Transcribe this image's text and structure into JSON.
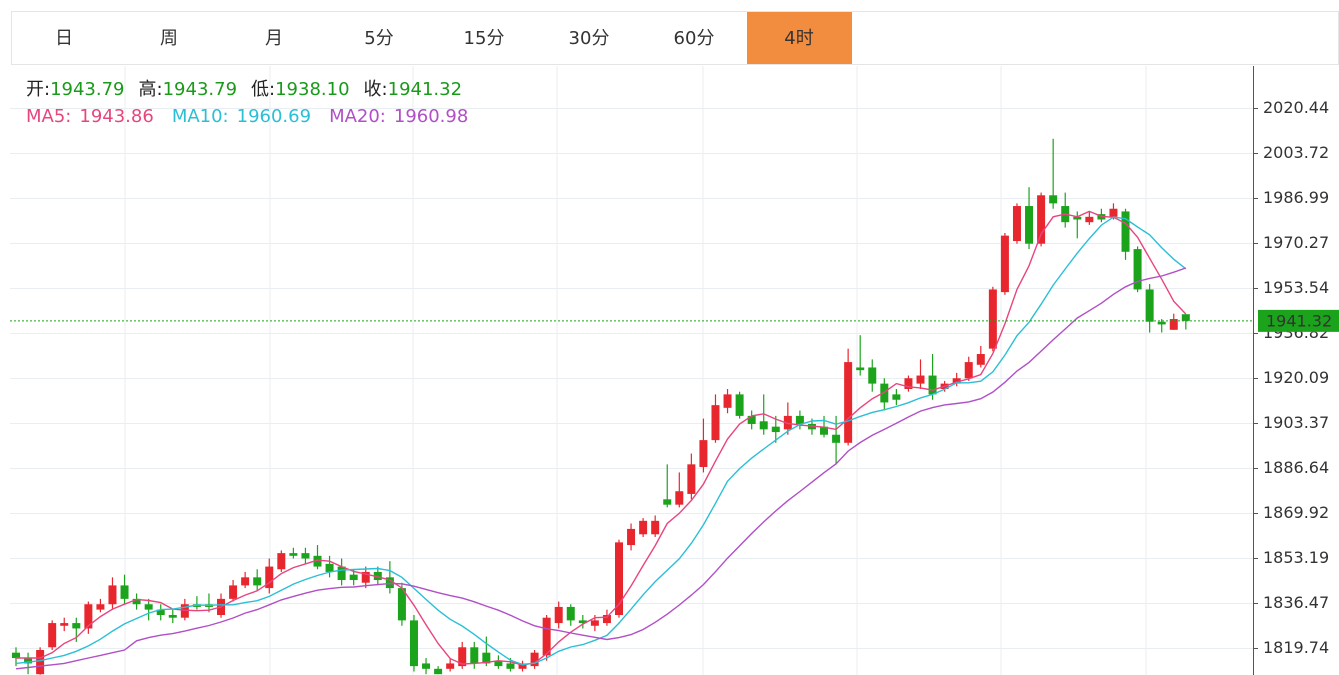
{
  "chart_data": {
    "type": "candlestick",
    "tabs": [
      "日",
      "周",
      "月",
      "5分",
      "15分",
      "30分",
      "60分",
      "4时"
    ],
    "active_tab": 7,
    "info": [
      {
        "label": "开:",
        "value": "1943.79"
      },
      {
        "label": "高:",
        "value": "1943.79"
      },
      {
        "label": "低:",
        "value": "1938.10"
      },
      {
        "label": "收:",
        "value": "1941.32"
      }
    ],
    "up_color": "#e8262e",
    "down_color": "#1ca31c",
    "ylim": [
      1809.7,
      2036.05
    ],
    "yticks": [
      1819.74,
      1836.47,
      1853.19,
      1869.92,
      1886.64,
      1903.37,
      1920.09,
      1936.82,
      1953.54,
      1970.27,
      1986.99,
      2003.72,
      2020.44
    ],
    "grid": true,
    "last_price": 1941.32,
    "open": [
      1818,
      1816,
      1810,
      1820,
      1828,
      1829,
      1827,
      1834,
      1836,
      1843,
      1838,
      1836,
      1834,
      1832,
      1831,
      1836,
      1836,
      1832,
      1838,
      1843,
      1846,
      1842,
      1849,
      1855,
      1855,
      1854,
      1851,
      1850,
      1847,
      1844,
      1848,
      1846,
      1842,
      1830,
      1814,
      1812,
      1812,
      1813,
      1820,
      1818,
      1815,
      1814,
      1812,
      1813,
      1817,
      1829,
      1835,
      1830,
      1828,
      1829,
      1832,
      1858,
      1862,
      1862,
      1875,
      1873,
      1877,
      1887,
      1897,
      1909,
      1914,
      1906,
      1904,
      1902,
      1901,
      1906,
      1903,
      1902,
      1899,
      1896,
      1924,
      1924,
      1918,
      1914,
      1916,
      1918,
      1921,
      1916,
      1918,
      1920,
      1925,
      1931,
      1952,
      1971,
      1984,
      1970,
      1988,
      1984,
      1980,
      1978,
      1981,
      1980,
      1982,
      1968,
      1953,
      1941,
      1938,
      1943.79
    ],
    "high": [
      1820,
      1818,
      1820,
      1830,
      1831,
      1831,
      1837,
      1838,
      1846,
      1847,
      1840,
      1838,
      1836,
      1834,
      1838,
      1839,
      1840,
      1840,
      1845,
      1848,
      1849,
      1853,
      1856,
      1857,
      1857,
      1858,
      1854,
      1853,
      1849,
      1850,
      1850,
      1852,
      1844,
      1832,
      1816,
      1813,
      1816,
      1822,
      1822,
      1824,
      1817,
      1816,
      1815,
      1819,
      1832,
      1837,
      1836,
      1832,
      1832,
      1834,
      1860,
      1866,
      1868,
      1869,
      1888,
      1885,
      1892,
      1905,
      1914,
      1916,
      1915,
      1908,
      1914,
      1906,
      1911,
      1908,
      1905,
      1906,
      1906,
      1931,
      1936,
      1927,
      1920,
      1916,
      1921,
      1927,
      1929,
      1919,
      1922,
      1928,
      1932,
      1954,
      1974,
      1985,
      1991,
      1989,
      2009,
      1989,
      1982,
      1982,
      1983,
      1985,
      1983,
      1969,
      1955,
      1942,
      1944,
      1943.79
    ],
    "low": [
      1813,
      1810,
      1809.8,
      1819,
      1826,
      1822,
      1825,
      1833,
      1834,
      1836,
      1834,
      1830,
      1830,
      1829,
      1830,
      1834,
      1833,
      1831,
      1837,
      1842,
      1841,
      1840,
      1848,
      1853,
      1851,
      1849,
      1846,
      1843,
      1843,
      1842,
      1843,
      1840,
      1828,
      1811,
      1810,
      1810,
      1811,
      1812,
      1812,
      1813,
      1812,
      1811,
      1811,
      1812,
      1815,
      1827,
      1828,
      1827,
      1826,
      1828,
      1831,
      1856,
      1861,
      1861,
      1872,
      1872,
      1875,
      1885,
      1896,
      1907,
      1905,
      1901,
      1899,
      1896,
      1899,
      1901,
      1899,
      1898,
      1888,
      1895,
      1921,
      1915,
      1908,
      1910,
      1915,
      1916,
      1912,
      1915,
      1917,
      1919,
      1924,
      1930,
      1951,
      1970,
      1968,
      1969,
      1983,
      1976,
      1972,
      1977,
      1978,
      1979,
      1964,
      1952,
      1937,
      1937,
      1938,
      1938.1
    ],
    "close": [
      1816,
      1814,
      1819,
      1829,
      1829,
      1827,
      1836,
      1836,
      1843,
      1838,
      1836,
      1834,
      1832,
      1831,
      1836,
      1835,
      1835,
      1838,
      1843,
      1846,
      1843,
      1850,
      1855,
      1854,
      1853,
      1850,
      1848,
      1845,
      1845,
      1848,
      1845,
      1842,
      1830,
      1813,
      1812,
      1810,
      1814,
      1820,
      1814,
      1814,
      1813,
      1812,
      1814,
      1818,
      1831,
      1835,
      1830,
      1829,
      1830,
      1832,
      1859,
      1864,
      1867,
      1867,
      1873,
      1878,
      1888,
      1897,
      1910,
      1914,
      1906,
      1903,
      1901,
      1900,
      1906,
      1903,
      1901,
      1899,
      1896,
      1926,
      1923,
      1918,
      1911,
      1912,
      1920,
      1921,
      1914,
      1918,
      1920,
      1926,
      1929,
      1953,
      1973,
      1984,
      1970,
      1988,
      1985,
      1978,
      1979,
      1980,
      1979,
      1983,
      1967,
      1953,
      1941,
      1940,
      1942,
      1941.32
    ],
    "series": [
      {
        "name": "MA5:",
        "last": "1943.86",
        "color": "#e8457f",
        "values": [
          1816,
          1816,
          1816,
          1818,
          1821.4,
          1823.6,
          1828,
          1831.4,
          1834.2,
          1836,
          1837.8,
          1837.4,
          1836.6,
          1834.2,
          1833.8,
          1833.6,
          1833.8,
          1835,
          1837.4,
          1839.4,
          1841,
          1844,
          1847.4,
          1849.6,
          1851,
          1852.4,
          1852,
          1850,
          1848.2,
          1847.2,
          1846.2,
          1845,
          1842,
          1835.6,
          1828.4,
          1821.4,
          1815.8,
          1813.8,
          1814,
          1814.4,
          1815,
          1814.6,
          1813.4,
          1814.2,
          1817.6,
          1822,
          1825.6,
          1828.6,
          1831,
          1831.2,
          1836,
          1842.8,
          1850.4,
          1857.8,
          1866,
          1869.8,
          1874.6,
          1880.6,
          1889.2,
          1897.4,
          1903,
          1906,
          1906.8,
          1904.8,
          1903.2,
          1902.6,
          1902.2,
          1901.8,
          1901,
          1905,
          1909,
          1912.4,
          1914.8,
          1918,
          1916.8,
          1916.4,
          1915.6,
          1917,
          1918.6,
          1919.8,
          1921.4,
          1929.2,
          1940.2,
          1953,
          1961.8,
          1973.6,
          1980,
          1981,
          1980,
          1982,
          1980.2,
          1979.8,
          1977.6,
          1972.4,
          1964.6,
          1956.8,
          1948.6,
          1943.86
        ]
      },
      {
        "name": "MA10:",
        "last": "1960.69",
        "color": "#2bbfd6",
        "values": [
          1814,
          1814.5,
          1815,
          1816,
          1817,
          1818.5,
          1820.5,
          1823,
          1826,
          1828.7,
          1830.7,
          1832.7,
          1834,
          1834.2,
          1834.9,
          1835.7,
          1835.6,
          1835.8,
          1835.8,
          1836.6,
          1837.3,
          1838.9,
          1841.2,
          1843.5,
          1845.2,
          1846.7,
          1848,
          1848.7,
          1848.9,
          1849.1,
          1849.3,
          1848.5,
          1846,
          1841.9,
          1837.8,
          1833.8,
          1830.4,
          1827.9,
          1824.8,
          1821.4,
          1818.2,
          1815.2,
          1813.6,
          1814.1,
          1816,
          1818.5,
          1820.1,
          1821,
          1822.6,
          1824.4,
          1829,
          1834.2,
          1839.5,
          1844.4,
          1848.6,
          1852.9,
          1858.7,
          1865.5,
          1873.5,
          1881.7,
          1886.4,
          1890.3,
          1893.7,
          1897,
          1900.3,
          1902.8,
          1904.1,
          1904.3,
          1902.9,
          1904.1,
          1905.8,
          1907.3,
          1908.3,
          1909.5,
          1910.9,
          1912.7,
          1914,
          1915.9,
          1918.3,
          1918.3,
          1918.9,
          1922.4,
          1928.6,
          1935.8,
          1940.8,
          1947.5,
          1954.6,
          1960.6,
          1966.5,
          1971.9,
          1976.9,
          1979.9,
          1979.3,
          1976.2,
          1973.3,
          1968.5,
          1964.2,
          1960.69
        ]
      },
      {
        "name": "MA20:",
        "last": "1960.98",
        "color": "#b14fc6",
        "values": [
          1812,
          1812.5,
          1813,
          1813.5,
          1814,
          1815,
          1816,
          1817,
          1818,
          1819,
          1822.4,
          1823.6,
          1824.5,
          1825.1,
          1826,
          1827.1,
          1828.1,
          1829.4,
          1830.9,
          1832.7,
          1834,
          1835.8,
          1837.6,
          1838.9,
          1840.1,
          1841.2,
          1841.8,
          1842.3,
          1842.4,
          1842.9,
          1843.3,
          1843.7,
          1843.6,
          1842.7,
          1841.5,
          1840.3,
          1839.2,
          1838.3,
          1836.9,
          1835.3,
          1833.8,
          1831.9,
          1829.8,
          1828,
          1826.9,
          1826.2,
          1825.3,
          1824.5,
          1823.7,
          1822.9,
          1823.6,
          1824.7,
          1826.6,
          1829.3,
          1832.3,
          1835.7,
          1839.4,
          1843.3,
          1848.1,
          1853.1,
          1857.7,
          1862.3,
          1866.6,
          1870.7,
          1874.5,
          1877.9,
          1881.4,
          1884.9,
          1888.2,
          1892.9,
          1896.1,
          1898.8,
          1901,
          1903.3,
          1905.6,
          1907.8,
          1909.1,
          1910.1,
          1910.6,
          1911.2,
          1912.4,
          1914.9,
          1918.5,
          1922.7,
          1925.9,
          1930.1,
          1934.3,
          1938.3,
          1942.4,
          1945.1,
          1947.9,
          1951.2,
          1954,
          1956,
          1957.1,
          1958,
          1959.4,
          1960.98
        ]
      }
    ]
  }
}
